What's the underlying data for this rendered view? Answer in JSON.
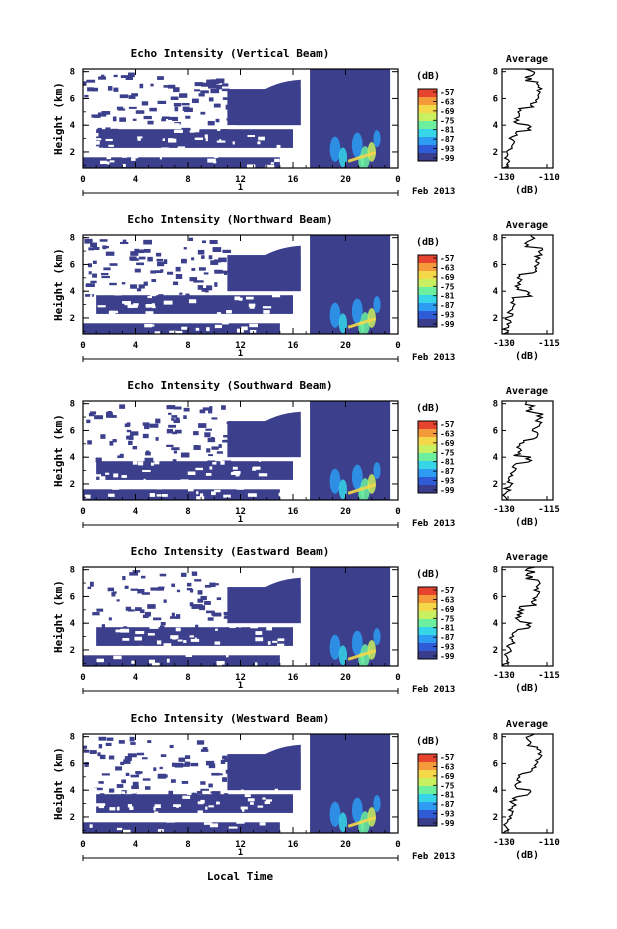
{
  "chart_data": {
    "type": "heatmap",
    "x_label": "Local Time",
    "x_ticks": [
      "0",
      "4",
      "8",
      "12",
      "16",
      "20",
      "0"
    ],
    "day_marker": "1",
    "month_label": "Feb 2013",
    "y_label": "Height (km)",
    "y_ticks": [
      "2",
      "4",
      "6",
      "8"
    ],
    "ylim": [
      0.8,
      8.2
    ],
    "colorbar_unit": "(dB)",
    "colorbar_ticks": [
      "-57",
      "-63",
      "-69",
      "-75",
      "-81",
      "-87",
      "-93",
      "-99"
    ],
    "profile_title": "Average",
    "profile_unit": "(dB)",
    "panels": [
      {
        "title": "Echo Intensity (Vertical Beam)",
        "profile_ticks": [
          "-130",
          "-110"
        ]
      },
      {
        "title": "Echo Intensity (Northward Beam)",
        "profile_ticks": [
          "-130",
          "-115"
        ]
      },
      {
        "title": "Echo Intensity (Southward Beam)",
        "profile_ticks": [
          "-130",
          "-115"
        ]
      },
      {
        "title": "Echo Intensity (Eastward Beam)",
        "profile_ticks": [
          "-130",
          "-115"
        ]
      },
      {
        "title": "Echo Intensity (Westward Beam)",
        "profile_ticks": [
          "-130",
          "-110"
        ]
      }
    ]
  },
  "colors": {
    "background_echo": "#3b3f8c",
    "colormap": [
      "#3a3d8c",
      "#2f5bd6",
      "#2d9cf2",
      "#36d6e8",
      "#6cf0a0",
      "#c9f060",
      "#f5d84a",
      "#f59a3a",
      "#e6442e"
    ]
  }
}
